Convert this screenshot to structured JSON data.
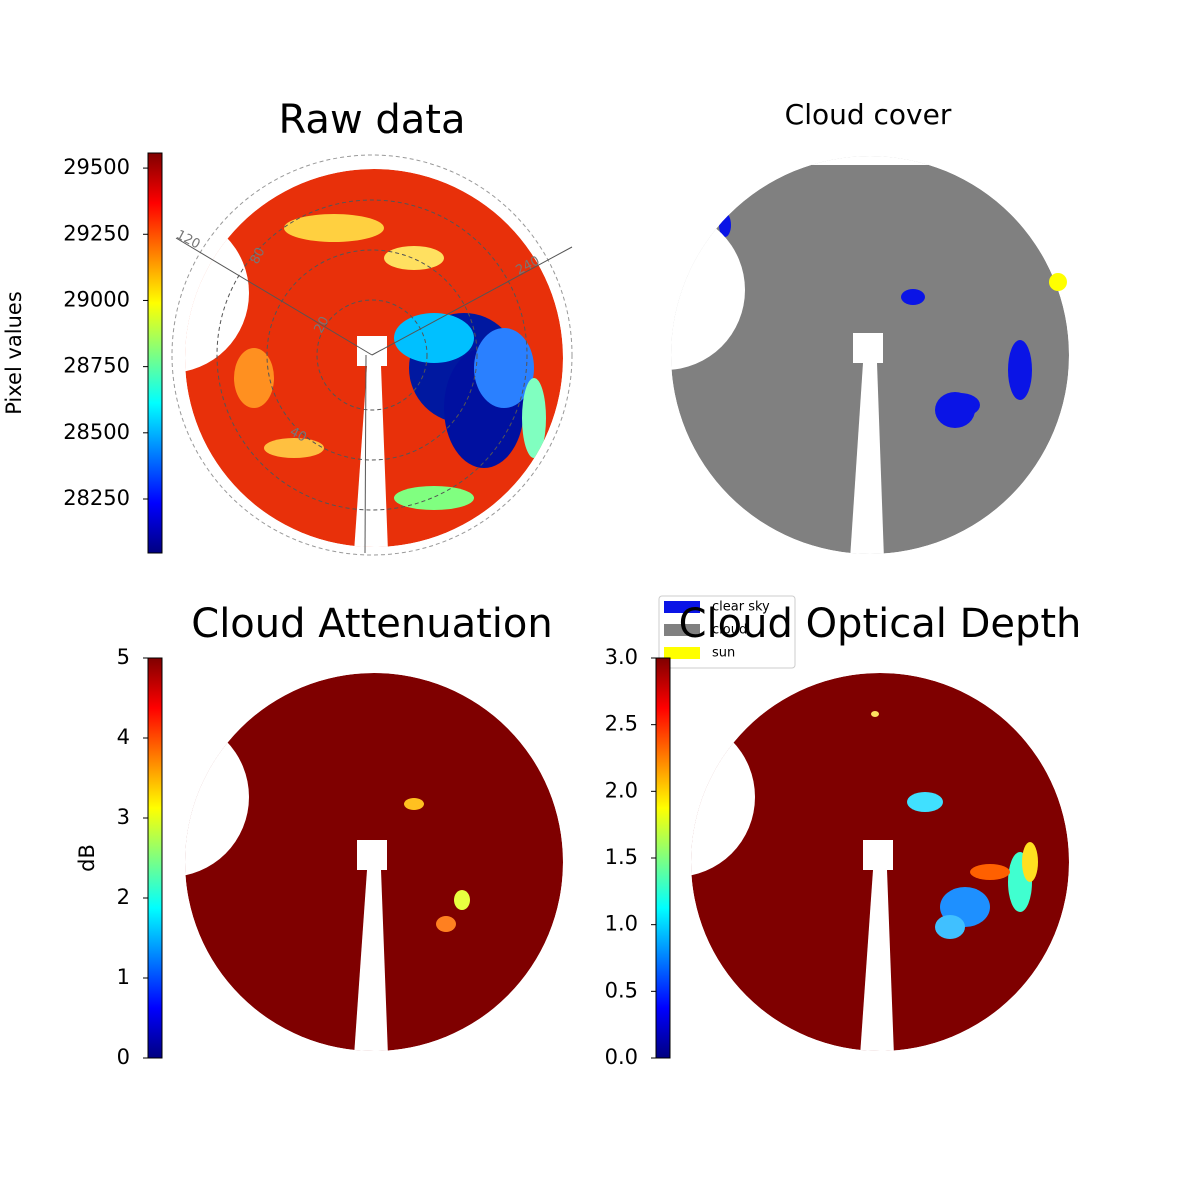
{
  "chart_data": [
    {
      "type": "image",
      "title": "Raw data",
      "colormap": "jet",
      "color": "#e8300a",
      "ylabel": "Pixel values",
      "ylim": [
        28046,
        29557
      ],
      "yticks": [
        28250,
        28500,
        28750,
        29000,
        29250,
        29500
      ],
      "annotations": [
        "120",
        "240",
        "80",
        "20",
        "40"
      ]
    },
    {
      "type": "image",
      "title": "Cloud cover",
      "color": "#808080",
      "series": [
        {
          "name": "clear sky",
          "color": "#0a14e6"
        },
        {
          "name": "cloud",
          "color": "#808080"
        },
        {
          "name": "sun",
          "color": "#ffff00"
        }
      ]
    },
    {
      "type": "image",
      "title": "Cloud Attenuation",
      "colormap": "jet",
      "color": "#7f0000",
      "ylabel": "dB",
      "ylim": [
        0,
        5
      ],
      "yticks": [
        0,
        1,
        2,
        3,
        4,
        5
      ]
    },
    {
      "type": "image",
      "title": "Cloud Optical Depth",
      "colormap": "jet",
      "color": "#7f0000",
      "ylim": [
        0,
        3
      ],
      "yticks": [
        {
          "value": 0,
          "label": "0.0"
        },
        0.5,
        {
          "value": 1,
          "label": "1.0"
        },
        1.5,
        {
          "value": 2,
          "label": "2.0"
        },
        2.5,
        {
          "value": 3,
          "label": "3.0"
        }
      ]
    }
  ]
}
